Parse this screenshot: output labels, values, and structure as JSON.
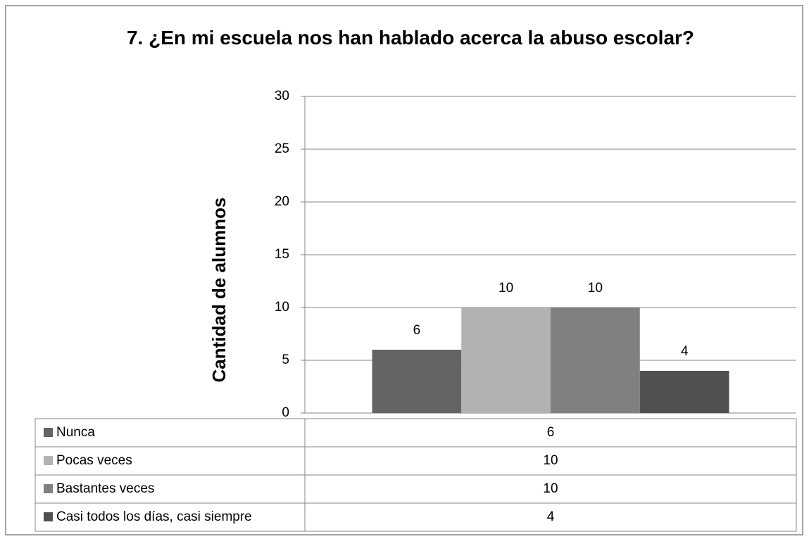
{
  "chart_data": {
    "type": "bar",
    "title": "7. ¿En mi escuela nos han hablado acerca la abuso escolar?",
    "y_axis_label": "Cantidad de alumnos",
    "categories": [
      null
    ],
    "series": [
      {
        "name": "Nunca",
        "color": "#646464",
        "values": [
          6
        ]
      },
      {
        "name": "Pocas veces",
        "color": "#b2b2b2",
        "values": [
          10
        ]
      },
      {
        "name": "Bastantes veces",
        "color": "#808080",
        "values": [
          10
        ]
      },
      {
        "name": "Casi todos los días, casi siempre",
        "color": "#505050",
        "values": [
          4
        ]
      }
    ],
    "ylim": [
      0,
      30
    ],
    "yticks": [
      0,
      5,
      10,
      15,
      20,
      25,
      30
    ],
    "grid": true,
    "legend": "data-table"
  }
}
